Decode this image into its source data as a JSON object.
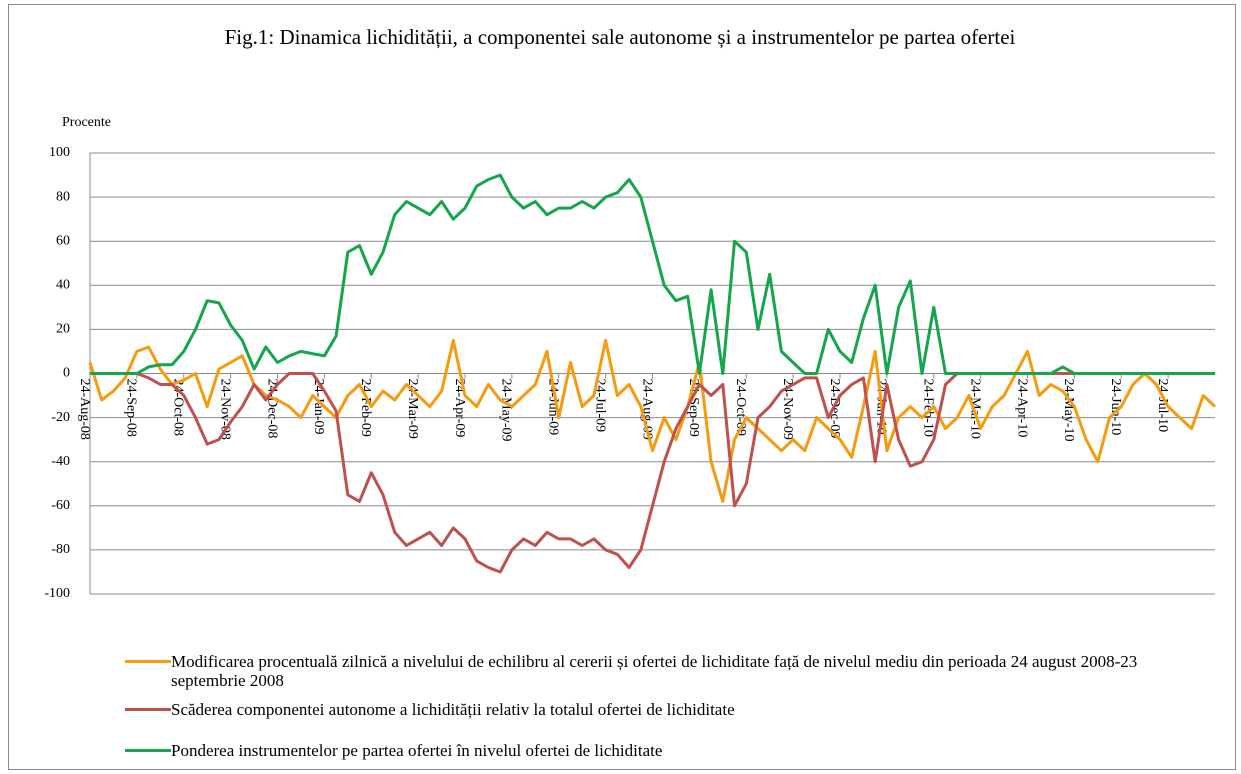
{
  "chart_data": {
    "type": "line",
    "title": "Fig.1: Dinamica lichidității, a componentei sale autonome și a instrumentelor pe partea ofertei",
    "y_label": "Procente",
    "categories": [
      "24-Aug-08",
      null,
      null,
      null,
      "24-Sep-08",
      null,
      null,
      null,
      "24-Oct-08",
      null,
      null,
      null,
      "24-Nov-08",
      null,
      null,
      null,
      "24-Dec-08",
      null,
      null,
      null,
      "24-Jan-09",
      null,
      null,
      null,
      "24-Feb-09",
      null,
      null,
      null,
      "24-Mar-09",
      null,
      null,
      null,
      "24-Apr-09",
      null,
      null,
      null,
      "24-May-09",
      null,
      null,
      null,
      "24-Jun-09",
      null,
      null,
      null,
      "24-Jul-09",
      null,
      null,
      null,
      "24-Aug-09",
      null,
      null,
      null,
      "24-Sep-09",
      null,
      null,
      null,
      "24-Oct-09",
      null,
      null,
      null,
      "24-Nov-09",
      null,
      null,
      null,
      "24-Dec-09",
      null,
      null,
      null,
      "24-Jan-10",
      null,
      null,
      null,
      "24-Feb-10",
      null,
      null,
      null,
      "24-Mar-10",
      null,
      null,
      null,
      "24-Apr-10",
      null,
      null,
      null,
      "24-May-10",
      null,
      null,
      null,
      "24-Jun-10",
      null,
      null,
      null,
      "24-Jul-10",
      null,
      null,
      null,
      null
    ],
    "series": [
      {
        "name": "Modificarea procentuală zilnică a nivelului de echilibru al cererii și ofertei de lichiditate față de nivelul mediu din perioada 24 august 2008-23 septembrie 2008",
        "color": "#f79a0e",
        "values": [
          5,
          -12,
          -8,
          -2,
          10,
          12,
          2,
          -5,
          -3,
          0,
          -15,
          2,
          5,
          8,
          -5,
          -10,
          -12,
          -15,
          -20,
          -10,
          -15,
          -20,
          -10,
          -5,
          -15,
          -8,
          -12,
          -5,
          -10,
          -15,
          -8,
          15,
          -10,
          -15,
          -5,
          -12,
          -15,
          -10,
          -5,
          10,
          -20,
          5,
          -15,
          -10,
          15,
          -10,
          -5,
          -15,
          -35,
          -20,
          -30,
          -15,
          5,
          -40,
          -58,
          -30,
          -20,
          -25,
          -30,
          -35,
          -30,
          -35,
          -20,
          -25,
          -30,
          -38,
          -15,
          10,
          -35,
          -20,
          -15,
          -20,
          -15,
          -25,
          -20,
          -10,
          -25,
          -15,
          -10,
          0,
          10,
          -10,
          -5,
          -8,
          -15,
          -30,
          -40,
          -20,
          -15,
          -5,
          0,
          -5,
          -15,
          -20,
          -25,
          -10,
          -15
        ]
      },
      {
        "name": "Scăderea componentei autonome a lichidității relativ la totalul ofertei de lichiditate",
        "color": "#c0504d",
        "values": [
          0,
          0,
          0,
          0,
          0,
          -2,
          -5,
          -5,
          -10,
          -20,
          -32,
          -30,
          -22,
          -15,
          -5,
          -12,
          -5,
          0,
          0,
          0,
          -8,
          -17,
          -55,
          -58,
          -45,
          -55,
          -72,
          -78,
          -75,
          -72,
          -78,
          -70,
          -75,
          -85,
          -88,
          -90,
          -80,
          -75,
          -78,
          -72,
          -75,
          -75,
          -78,
          -75,
          -80,
          -82,
          -88,
          -80,
          -60,
          -40,
          -25,
          -15,
          -5,
          -10,
          -5,
          -60,
          -50,
          -20,
          -15,
          -8,
          -5,
          -2,
          -2,
          -20,
          -10,
          -5,
          -2,
          -40,
          -5,
          -30,
          -42,
          -40,
          -30,
          -5,
          0,
          0,
          0,
          0,
          0,
          0,
          0,
          0,
          0,
          0,
          0,
          0,
          0,
          0,
          0,
          0,
          0,
          0,
          0,
          0,
          0,
          0,
          0
        ]
      },
      {
        "name": "Ponderea instrumentelor pe partea ofertei în nivelul ofertei de lichiditate",
        "color": "#14a64a",
        "values": [
          0,
          0,
          0,
          0,
          0,
          3,
          4,
          4,
          10,
          20,
          33,
          32,
          22,
          15,
          2,
          12,
          5,
          8,
          10,
          9,
          8,
          17,
          55,
          58,
          45,
          55,
          72,
          78,
          75,
          72,
          78,
          70,
          75,
          85,
          88,
          90,
          80,
          75,
          78,
          72,
          75,
          75,
          78,
          75,
          80,
          82,
          88,
          80,
          60,
          40,
          33,
          35,
          0,
          38,
          0,
          60,
          55,
          20,
          45,
          10,
          5,
          0,
          0,
          20,
          10,
          5,
          25,
          40,
          0,
          30,
          42,
          0,
          30,
          0,
          0,
          0,
          0,
          0,
          0,
          0,
          0,
          0,
          0,
          3,
          0,
          0,
          0,
          0,
          0,
          0,
          0,
          0,
          0,
          0,
          0,
          0,
          0
        ]
      }
    ],
    "ylim": [
      -100,
      100
    ],
    "yticks": [
      -100,
      -80,
      -60,
      -40,
      -20,
      0,
      20,
      40,
      60,
      80,
      100
    ],
    "grid": true
  }
}
